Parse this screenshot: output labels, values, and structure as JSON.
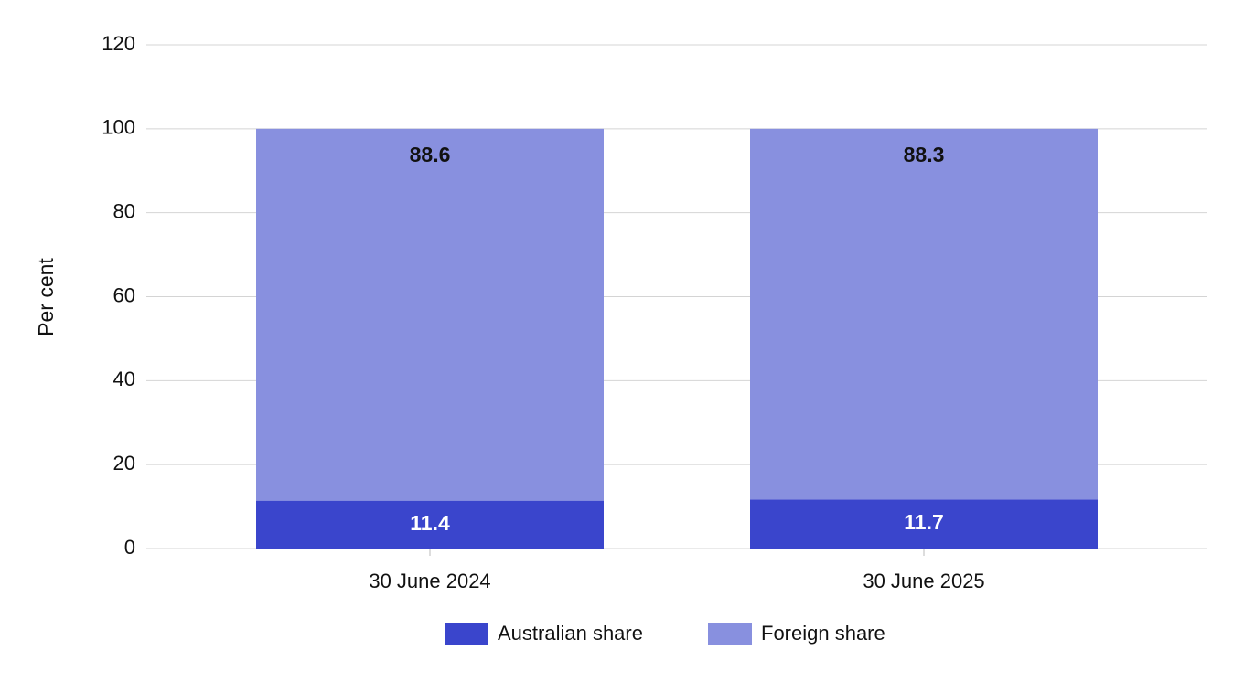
{
  "chart_data": {
    "type": "stacked-bar",
    "y_label": "Per cent",
    "categories": [
      "30 June 2024",
      "30 June 2025"
    ],
    "series": [
      {
        "name": "Australian share",
        "color": "#3a45cc",
        "values": [
          11.4,
          11.7
        ],
        "label_color": "#ffffff"
      },
      {
        "name": "Foreign share",
        "color": "#8890df",
        "values": [
          88.6,
          88.3
        ],
        "label_color": "#111111"
      }
    ],
    "ylim": [
      0,
      120
    ],
    "yticks": [
      0,
      20,
      40,
      60,
      80,
      100,
      120
    ],
    "grid": true
  }
}
